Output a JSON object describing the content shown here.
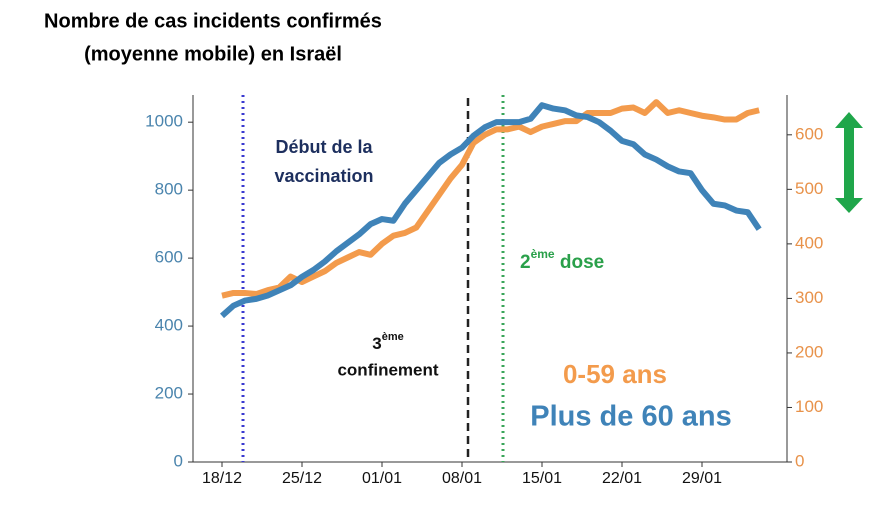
{
  "chart_data": {
    "type": "line",
    "title": [
      "Nombre de cas incidents confirmés",
      "(moyenne mobile) en Israël"
    ],
    "categories": [
      "18/12",
      null,
      null,
      null,
      null,
      null,
      null,
      "25/12",
      null,
      null,
      null,
      null,
      null,
      null,
      "01/01",
      null,
      null,
      null,
      null,
      null,
      null,
      "08/01",
      null,
      null,
      null,
      null,
      null,
      null,
      "15/01",
      null,
      null,
      null,
      null,
      null,
      null,
      "22/01",
      null,
      null,
      null,
      null,
      null,
      null,
      "29/01",
      null,
      null,
      null,
      null,
      null
    ],
    "series": [
      {
        "name": "0-59 ans",
        "color": "#f39b4c",
        "axis": "y2",
        "values": [
          305,
          310,
          310,
          308,
          315,
          320,
          340,
          330,
          340,
          350,
          365,
          375,
          385,
          380,
          400,
          415,
          420,
          430,
          460,
          490,
          520,
          545,
          585,
          600,
          610,
          610,
          615,
          605,
          615,
          620,
          625,
          625,
          640,
          640,
          640,
          648,
          650,
          640,
          660,
          640,
          645,
          640,
          635,
          632,
          628,
          628,
          640,
          645
        ]
      },
      {
        "name": "Plus de 60 ans",
        "color": "#3f83b8",
        "values": [
          430,
          460,
          475,
          480,
          490,
          505,
          520,
          545,
          565,
          590,
          620,
          645,
          670,
          700,
          715,
          710,
          760,
          800,
          840,
          880,
          905,
          925,
          960,
          985,
          1000,
          1000,
          1000,
          1010,
          1050,
          1040,
          1035,
          1020,
          1015,
          1000,
          975,
          945,
          935,
          905,
          890,
          870,
          855,
          850,
          800,
          760,
          755,
          740,
          735,
          685
        ]
      }
    ],
    "ylim": [
      0,
      1080
    ],
    "yticks": [
      0,
      200,
      400,
      600,
      800,
      1000
    ],
    "y2lim": [
      0,
      673
    ],
    "y2ticks": [
      0,
      100,
      200,
      300,
      400,
      500,
      600
    ],
    "vaccination_label": [
      "Début de la",
      "vaccination"
    ],
    "lockdown_label": {
      "number": "3",
      "sup": "ème",
      "text": "confinement"
    },
    "dose_label": {
      "number": "2",
      "sup": "ème",
      "text": " dose"
    }
  }
}
